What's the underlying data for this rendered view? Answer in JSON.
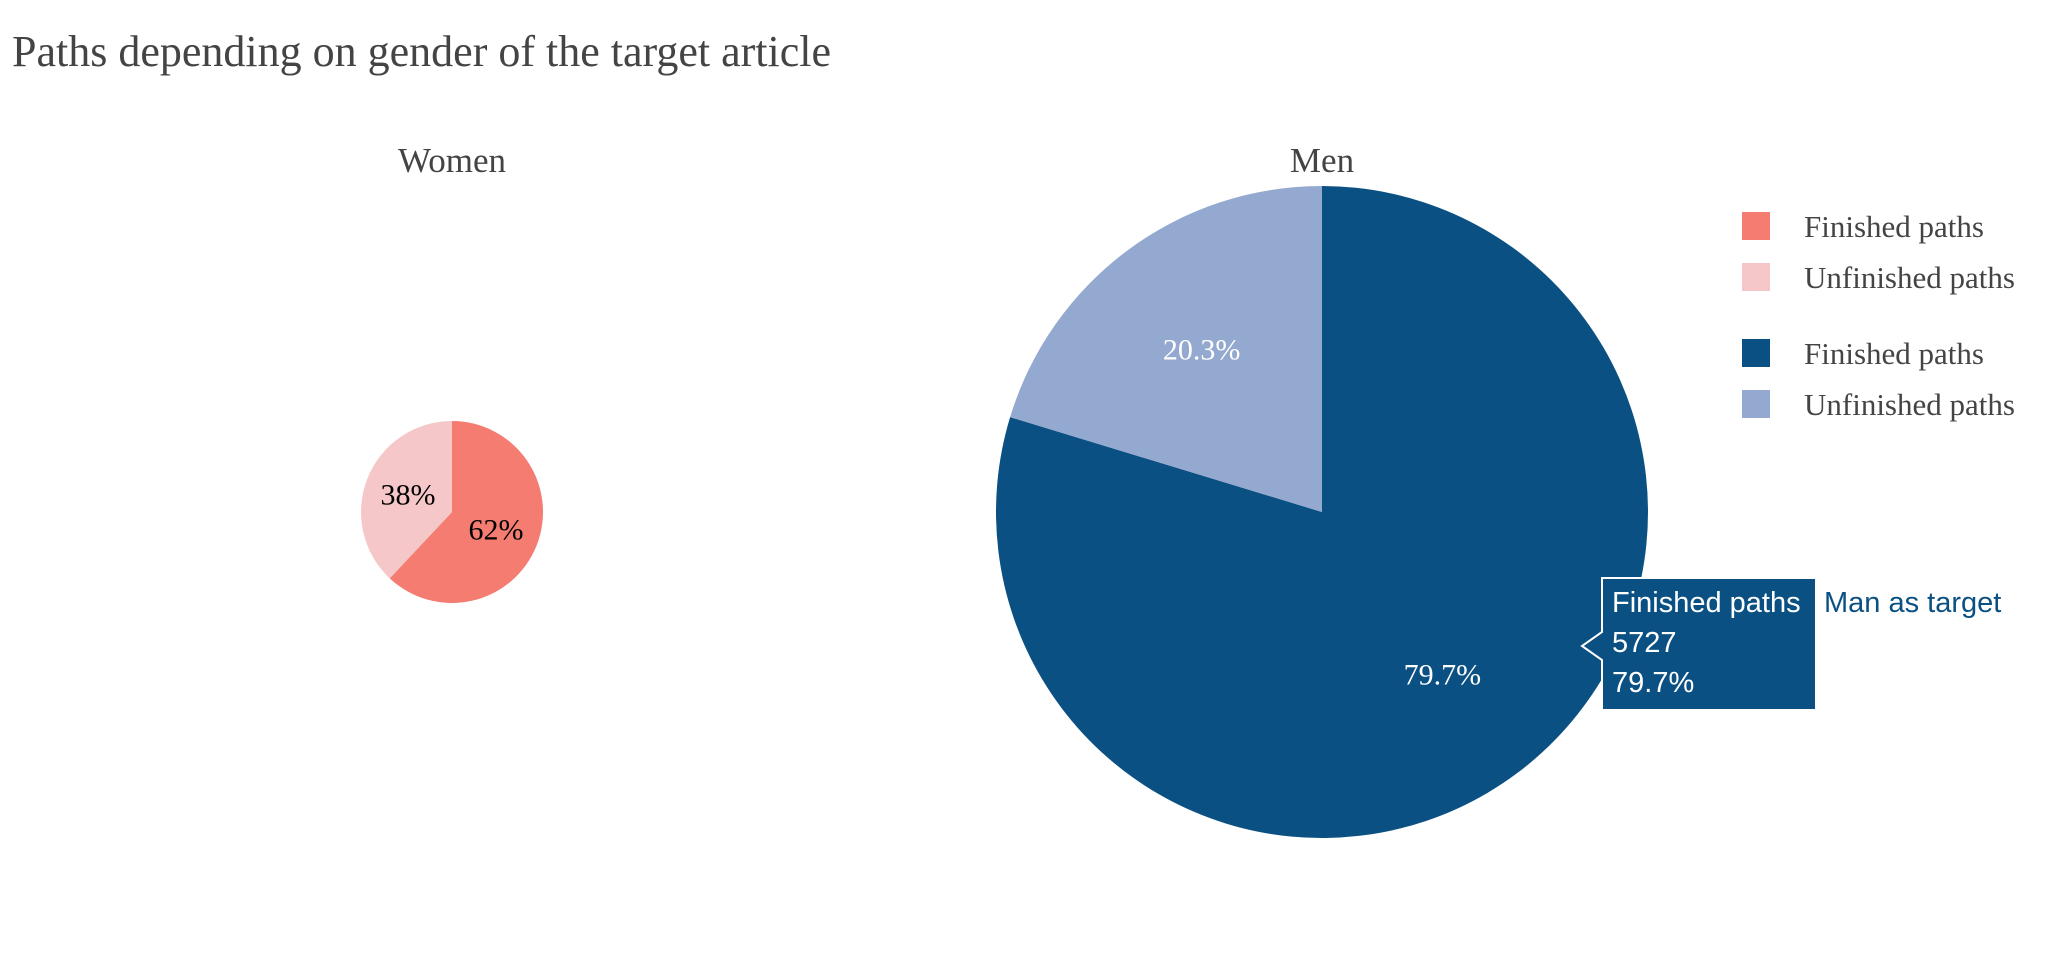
{
  "chart_data": {
    "type": "pie",
    "title": "Paths depending on gender of the target article",
    "charts": [
      {
        "subtitle": "Women",
        "slices": [
          {
            "label": "Finished paths",
            "percent": 62,
            "text": "62%",
            "color": "#F47C70",
            "text_color": "#000000"
          },
          {
            "label": "Unfinished paths",
            "percent": 38,
            "text": "38%",
            "color": "#F6C7C9",
            "text_color": "#000000"
          }
        ]
      },
      {
        "subtitle": "Men",
        "slices": [
          {
            "label": "Finished paths",
            "percent": 79.7,
            "text": "79.7%",
            "color": "#0B5083",
            "text_color": "#ffffff"
          },
          {
            "label": "Unfinished paths",
            "percent": 20.3,
            "text": "20.3%",
            "color": "#94A9D0",
            "text_color": "#ffffff"
          }
        ]
      }
    ],
    "legend": {
      "placement": "right",
      "groups": [
        [
          {
            "label": "Finished paths",
            "color": "#F47C70"
          },
          {
            "label": "Unfinished paths",
            "color": "#F6C7C9"
          }
        ],
        [
          {
            "label": "Finished paths",
            "color": "#0B5083"
          },
          {
            "label": "Unfinished paths",
            "color": "#94A9D0"
          }
        ]
      ]
    },
    "tooltip": {
      "label": "Finished paths",
      "count": "5727",
      "percent": "79.7%",
      "trace_name": "Man as target",
      "color": "#0B5083"
    }
  }
}
